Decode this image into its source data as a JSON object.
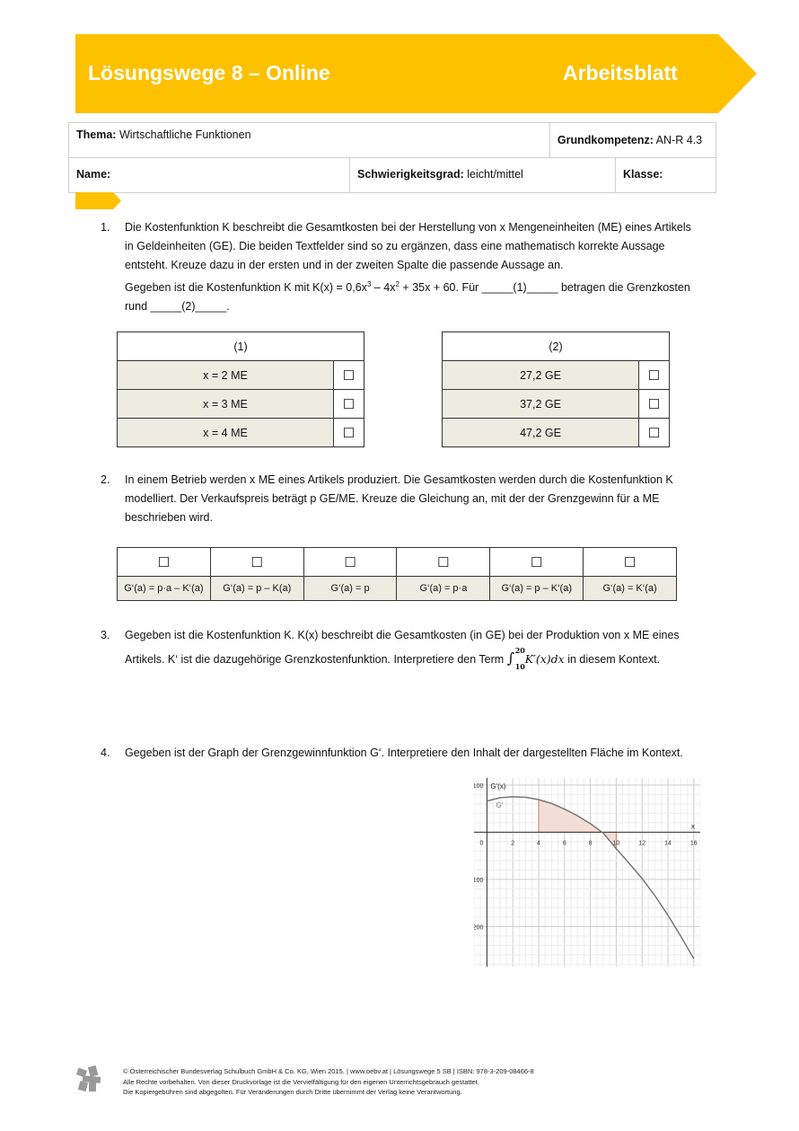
{
  "header": {
    "title": "Lösungswege 8 – Online",
    "type": "Arbeitsblatt",
    "color": "#fdc100"
  },
  "meta": {
    "thema_label": "Thema:",
    "thema": "Wirtschaftliche Funktionen",
    "kompetenz_label": "Grundkompetenz:",
    "kompetenz": "AN-R 4.3",
    "name_label": "Name:",
    "schwierigkeit_label": "Schwierigkeitsgrad:",
    "schwierigkeit": "leicht/mittel",
    "klasse_label": "Klasse:"
  },
  "tasks": [
    {
      "num": "1.",
      "l1": "Die Kostenfunktion K beschreibt die Gesamtkosten bei der Herstellung von x Mengeneinheiten (ME) eines Artikels",
      "l2": "in Geldeinheiten (GE). Die beiden Textfelder sind so zu ergänzen, dass eine mathematisch korrekte Aussage",
      "l3": "entsteht. Kreuze dazu in der ersten und in der zweiten Spalte die passende Aussage an.",
      "l4a": "Gegeben ist die Kostenfunktion K mit K(x) = 0,6x",
      "l4b": " – 4x",
      "l4c": " + 35x  + 60. Für _____(1)_____ betragen die Grenzkosten",
      "l5": "rund _____(2)_____.",
      "col1": {
        "head": "(1)",
        "options": [
          "x = 2 ME",
          "x = 3 ME",
          "x = 4 ME"
        ]
      },
      "col2": {
        "head": "(2)",
        "options": [
          "27,2 GE",
          "37,2 GE",
          "47,2 GE"
        ]
      }
    },
    {
      "num": "2.",
      "l1": "In einem Betrieb werden x ME eines Artikels produziert. Die Gesamtkosten werden durch die Kostenfunktion K",
      "l2": "modelliert. Der Verkaufspreis beträgt p GE/ME. Kreuze die Gleichung an, mit der der Grenzgewinn für a ME",
      "l3": "beschrieben wird.",
      "options": [
        "G‘(a) = p·a – K‘(a)",
        "G‘(a) = p – K(a)",
        "G‘(a) = p",
        "G‘(a) = p·a",
        "G‘(a) = p – K‘(a)",
        "G‘(a) = K‘(a)"
      ]
    },
    {
      "num": "3.",
      "l1": "Gegeben ist die Kostenfunktion K. K(x) beschreibt die Gesamtkosten (in GE) bei der Produktion von x ME eines",
      "l2a": "Artikels. K‘ ist die dazugehörige Grenzkostenfunktion. Interpretiere den Term ",
      "int_lo": "10",
      "int_hi": "20",
      "integrand": "K′(x)dx",
      "l2b": " in diesem Kontext."
    },
    {
      "num": "4.",
      "l1": "Gegeben ist der Graph der Grenzgewinnfunktion G‘. Interpretiere den Inhalt der dargestellten Fläche im Kontext."
    }
  ],
  "checkbox": "☐",
  "chart_data": {
    "type": "line",
    "ylabel": "G'(x)",
    "xlabel": "x",
    "series_label": "G'",
    "xlim": [
      -1,
      16.5
    ],
    "ylim": [
      -285,
      115
    ],
    "xticks": [
      "0",
      "2",
      "4",
      "6",
      "8",
      "10",
      "12",
      "14",
      "16"
    ],
    "yticks": [
      "100",
      "−100",
      "−200"
    ],
    "grid": true,
    "x": [
      0,
      1,
      2,
      3,
      4,
      5,
      6,
      7,
      8,
      9,
      10,
      11,
      12,
      13,
      14,
      15,
      16
    ],
    "y": [
      66,
      73,
      75,
      74,
      69,
      61,
      49,
      35,
      18,
      -2,
      -35,
      -66,
      -98,
      -135,
      -176,
      -221,
      -268
    ],
    "shaded_interval": [
      4,
      10
    ],
    "shade_color": "#f3ddd6",
    "curve_color": "#777777"
  },
  "footer": {
    "l1": "© Österreichischer Bundesverlag Schulbuch GmbH & Co. KG, Wien 2015. | www.oebv.at | Lösungswege 5 SB | ISBN: 978-3-209-08466-8",
    "l2": "Alle Rechte vorbehalten. Von dieser Druckvorlage ist die Vervielfältigung für den eigenen Unterrichtsgebrauch gestattet.",
    "l3": "Die Kopiergebühren sind abgegolten. Für Veränderungen durch Dritte übernimmt der Verlag keine Verantwortung."
  }
}
